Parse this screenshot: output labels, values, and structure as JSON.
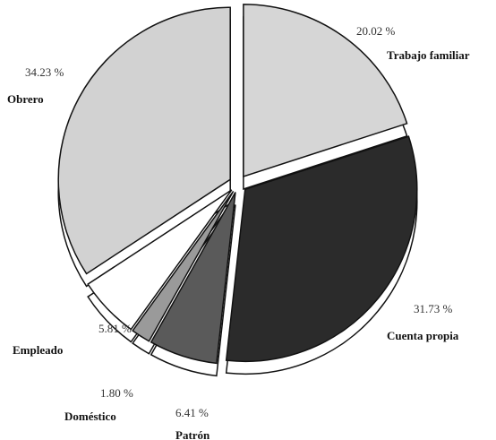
{
  "chart_data": {
    "type": "pie",
    "categories": [
      "Trabajo familiar",
      "Cuenta propia",
      "Patrón",
      "Doméstico",
      "Empleado",
      "Obrero"
    ],
    "values": [
      20.02,
      31.73,
      6.41,
      1.8,
      5.81,
      34.23
    ],
    "value_labels": [
      "20.02 %",
      "31.73 %",
      "6.41 %",
      "1.80 %",
      "5.81 %",
      "34.23 %"
    ],
    "colors": [
      "#d6d6d6",
      "#2b2b2b",
      "#5a5a5a",
      "#9a9a9a",
      "#ffffff",
      "#d2d2d2"
    ]
  }
}
